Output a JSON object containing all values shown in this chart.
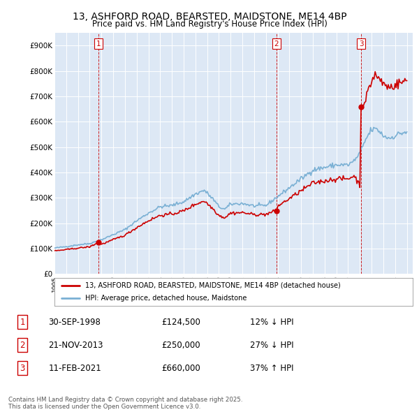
{
  "title": "13, ASHFORD ROAD, BEARSTED, MAIDSTONE, ME14 4BP",
  "subtitle": "Price paid vs. HM Land Registry's House Price Index (HPI)",
  "title_fontsize": 10,
  "subtitle_fontsize": 8.5,
  "background_color": "#ffffff",
  "plot_bg_color": "#dde8f5",
  "grid_color": "#ffffff",
  "ylabel_ticks": [
    "£0",
    "£100K",
    "£200K",
    "£300K",
    "£400K",
    "£500K",
    "£600K",
    "£700K",
    "£800K",
    "£900K"
  ],
  "ytick_values": [
    0,
    100000,
    200000,
    300000,
    400000,
    500000,
    600000,
    700000,
    800000,
    900000
  ],
  "ylim": [
    0,
    950000
  ],
  "xlim_start": 1995.0,
  "xlim_end": 2025.5,
  "sale_color": "#cc0000",
  "hpi_color": "#7ab0d4",
  "vline_color": "#cc0000",
  "sale_dates": [
    1998.75,
    2013.9,
    2021.1
  ],
  "sale_prices": [
    124500,
    250000,
    660000
  ],
  "sale_labels": [
    "1",
    "2",
    "3"
  ],
  "legend_sale_label": "13, ASHFORD ROAD, BEARSTED, MAIDSTONE, ME14 4BP (detached house)",
  "legend_hpi_label": "HPI: Average price, detached house, Maidstone",
  "table_data": [
    {
      "num": "1",
      "date": "30-SEP-1998",
      "price": "£124,500",
      "hpi": "12% ↓ HPI"
    },
    {
      "num": "2",
      "date": "21-NOV-2013",
      "price": "£250,000",
      "hpi": "27% ↓ HPI"
    },
    {
      "num": "3",
      "date": "11-FEB-2021",
      "price": "£660,000",
      "hpi": "37% ↑ HPI"
    }
  ],
  "footer": "Contains HM Land Registry data © Crown copyright and database right 2025.\nThis data is licensed under the Open Government Licence v3.0."
}
